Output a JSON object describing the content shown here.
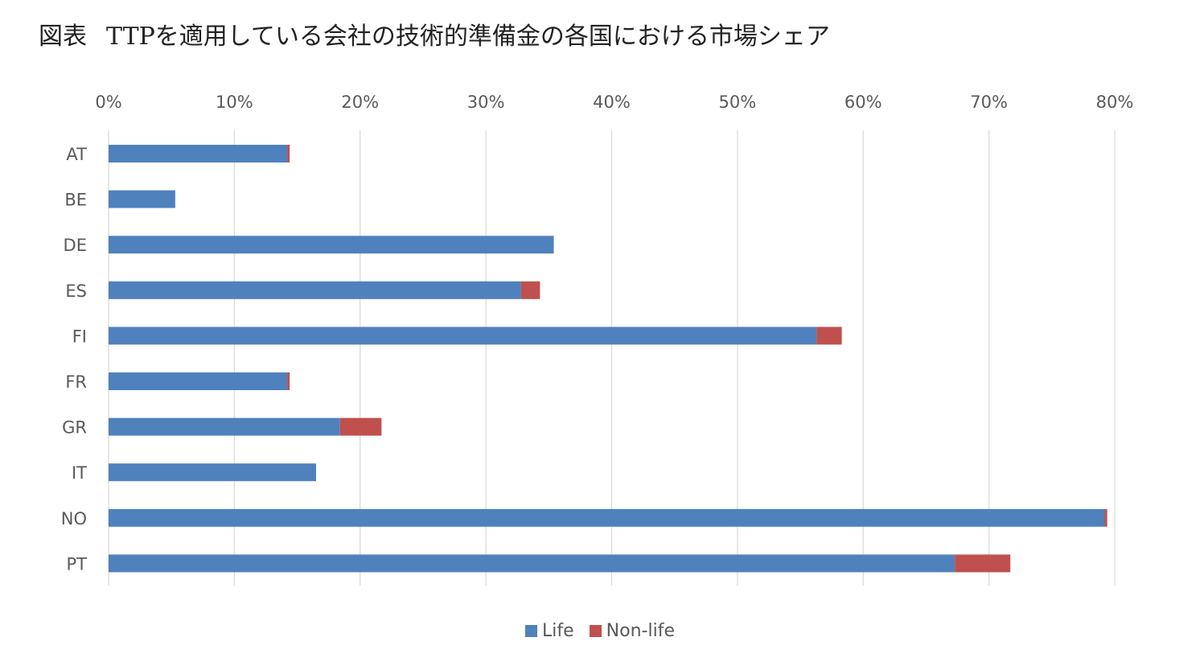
{
  "title": {
    "label": "図表",
    "text": "TTPを適用している会社の技術的準備金の各国における市場シェア"
  },
  "chart_data": {
    "type": "bar",
    "orientation": "horizontal",
    "stacked": true,
    "categories": [
      "AT",
      "BE",
      "DE",
      "ES",
      "FI",
      "FR",
      "GR",
      "IT",
      "NO",
      "PT"
    ],
    "series": [
      {
        "name": "Life",
        "color": "#4f81bd",
        "values": [
          14.2,
          5.3,
          35.4,
          32.8,
          56.3,
          14.2,
          18.4,
          16.5,
          79.2,
          67.3
        ]
      },
      {
        "name": "Non-life",
        "color": "#c0504d",
        "values": [
          0.2,
          0.0,
          0.0,
          1.5,
          2.0,
          0.2,
          3.3,
          0.0,
          0.2,
          4.4
        ]
      }
    ],
    "x_ticks": [
      "0%",
      "10%",
      "20%",
      "30%",
      "40%",
      "50%",
      "60%",
      "70%",
      "80%"
    ],
    "xlim": [
      0,
      80
    ],
    "x_unit": "%",
    "grid": true,
    "axis_position": "top",
    "legend_position": "bottom"
  }
}
